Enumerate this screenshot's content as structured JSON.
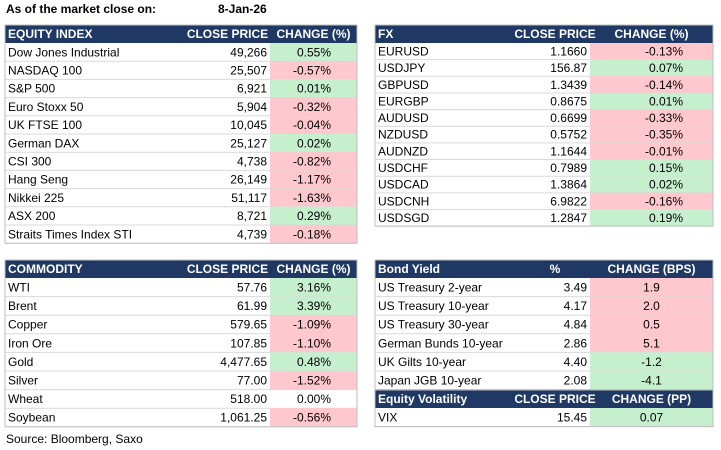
{
  "header": {
    "label": "As of the market close on:",
    "date": "8-Jan-26"
  },
  "tables": [
    {
      "header": [
        "EQUITY INDEX",
        "CLOSE PRICE",
        "CHANGE (%)"
      ],
      "rows": [
        [
          "Dow Jones Industrial",
          "49,266",
          "0.55%"
        ],
        [
          "NASDAQ 100",
          "25,507",
          "-0.57%"
        ],
        [
          "S&P 500",
          "6,921",
          "0.01%"
        ],
        [
          "Euro Stoxx 50",
          "5,904",
          "-0.32%"
        ],
        [
          "UK FTSE 100",
          "10,045",
          "-0.04%"
        ],
        [
          "German DAX",
          "25,127",
          "0.02%"
        ],
        [
          "CSI 300",
          "4,738",
          "-0.82%"
        ],
        [
          "Hang Seng",
          "26,149",
          "-1.17%"
        ],
        [
          "Nikkei 225",
          "51,117",
          "-1.63%"
        ],
        [
          "ASX 200",
          "8,721",
          "0.29%"
        ],
        [
          "Straits Times Index STI",
          "4,739",
          "-0.18%"
        ]
      ],
      "up_fill": "#c6efce",
      "down_fill": "#ffc7ce",
      "up_text": "#006100",
      "down_text": "#9c0006"
    },
    {
      "header": [
        "FX",
        "CLOSE PRICE",
        "CHANGE (%)"
      ],
      "rows": [
        [
          "EURUSD",
          "1.1660",
          "-0.13%"
        ],
        [
          "USDJPY",
          "156.87",
          "0.07%"
        ],
        [
          "GBPUSD",
          "1.3439",
          "-0.14%"
        ],
        [
          "EURGBP",
          "0.8675",
          "0.01%"
        ],
        [
          "AUDUSD",
          "0.6699",
          "-0.33%"
        ],
        [
          "NZDUSD",
          "0.5752",
          "-0.35%"
        ],
        [
          "AUDNZD",
          "1.1644",
          "-0.01%"
        ],
        [
          "USDCHF",
          "0.7989",
          "0.15%"
        ],
        [
          "USDCAD",
          "1.3864",
          "0.02%"
        ],
        [
          "USDCNH",
          "6.9822",
          "-0.16%"
        ],
        [
          "USDSGD",
          "1.2847",
          "0.19%"
        ]
      ],
      "up_fill": "#c6efce",
      "down_fill": "#ffc7ce",
      "up_text": "#006100",
      "down_text": "#9c0006"
    },
    {
      "header": [
        "COMMODITY",
        "CLOSE PRICE",
        "CHANGE (%)"
      ],
      "rows": [
        [
          "WTI",
          "57.76",
          "3.16%"
        ],
        [
          "Brent",
          "61.99",
          "3.39%"
        ],
        [
          "Copper",
          "579.65",
          "-1.09%"
        ],
        [
          "Iron Ore",
          "107.85",
          "-1.10%"
        ],
        [
          "Gold",
          "4,477.65",
          "0.48%"
        ],
        [
          "Silver",
          "77.00",
          "-1.52%"
        ],
        [
          "Wheat",
          "518.00",
          "0.00%"
        ],
        [
          "Soybean",
          "1,061.25",
          "-0.56%"
        ]
      ],
      "up_fill": "#c6efce",
      "down_fill": "#ffc7ce",
      "up_text": "#006100",
      "down_text": "#9c0006"
    },
    {
      "header": [
        "Bond Yield",
        "%",
        "CHANGE (BPS)"
      ],
      "rows": [
        [
          "US Treasury 2-year",
          "3.49",
          "1.9"
        ],
        [
          "US Treasury 10-year",
          "4.17",
          "2.0"
        ],
        [
          "US Treasury 30-year",
          "4.84",
          "0.5"
        ],
        [
          "German Bunds 10-year",
          "2.86",
          "5.1"
        ],
        [
          "UK Gilts 10-year",
          "4.40",
          "-1.2"
        ],
        [
          "Japan JGB 10-year",
          "2.08",
          "-4.1"
        ]
      ],
      "up_fill": "#ffc7ce",
      "down_fill": "#c6efce",
      "up_text": "#9c0006",
      "down_text": "#006100"
    },
    {
      "header": [
        "Equity Volatility",
        "CLOSE PRICE",
        "CHANGE (PP)"
      ],
      "rows": [
        [
          "VIX",
          "15.45",
          "0.07"
        ]
      ],
      "up_fill": "#c6efce",
      "down_fill": "#ffc7ce",
      "up_text": "#006100",
      "down_text": "#9c0006"
    }
  ],
  "source": "Source: Bloomberg, Saxo"
}
